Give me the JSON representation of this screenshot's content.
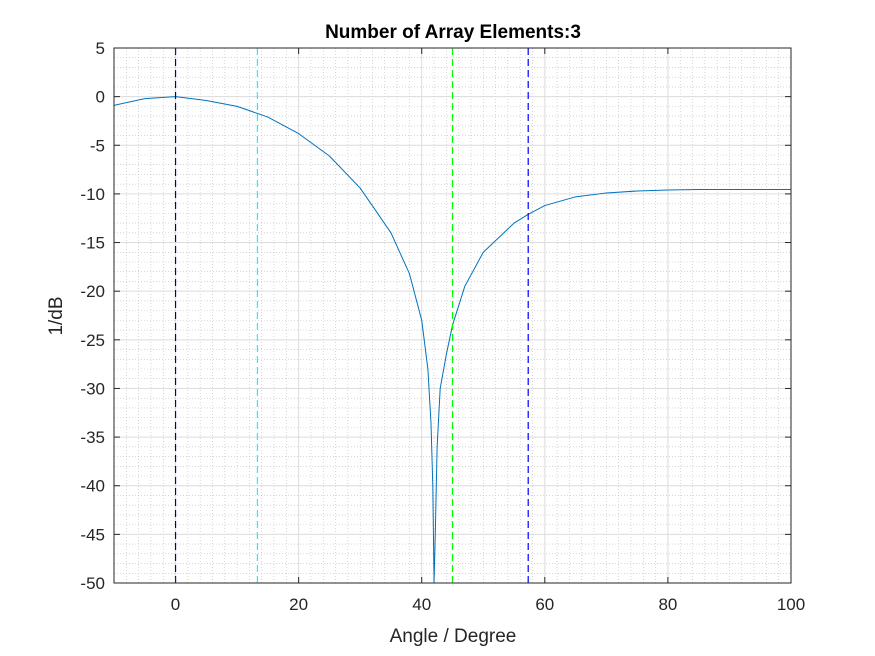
{
  "chart_data": {
    "type": "line",
    "title": "Number of Array Elements:3",
    "xlabel": "Angle / Degree",
    "ylabel": "1/dB",
    "xlim": [
      -10,
      100
    ],
    "ylim": [
      -50,
      5
    ],
    "xticks": [
      0,
      20,
      40,
      60,
      80,
      100
    ],
    "yticks": [
      5,
      0,
      -5,
      -10,
      -15,
      -20,
      -25,
      -30,
      -35,
      -40,
      -45,
      -50
    ],
    "grid": true,
    "minor_grid": true,
    "legend": "none",
    "series": [
      {
        "color": "#0072BD",
        "x": [
          -10,
          -5,
          0,
          5,
          10,
          15,
          20,
          25,
          30,
          35,
          38,
          40,
          41,
          41.5,
          41.8,
          42,
          42.2,
          42.5,
          43,
          44,
          45,
          47,
          50,
          55,
          57.3,
          60,
          65,
          70,
          75,
          80,
          85,
          90,
          95,
          100
        ],
        "y": [
          -0.9,
          -0.2,
          0.0,
          -0.4,
          -1.0,
          -2.1,
          -3.8,
          -6.1,
          -9.4,
          -14.0,
          -18.2,
          -23.0,
          -28.0,
          -33.5,
          -40.0,
          -50.0,
          -45.0,
          -36.0,
          -30.0,
          -26.5,
          -23.5,
          -19.5,
          -16.0,
          -13.0,
          -12.1,
          -11.2,
          -10.3,
          -9.9,
          -9.7,
          -9.6,
          -9.55,
          -9.55,
          -9.55,
          -9.55
        ]
      }
    ],
    "vlines": [
      {
        "x": 0,
        "color": "#00008B",
        "style": "dashed"
      },
      {
        "x": 13.3,
        "color": "#00FFFF",
        "style": "dashed"
      },
      {
        "x": 45,
        "color": "#00FF00",
        "style": "dashed"
      },
      {
        "x": 57.3,
        "color": "#0000FF",
        "style": "dashed"
      }
    ]
  }
}
